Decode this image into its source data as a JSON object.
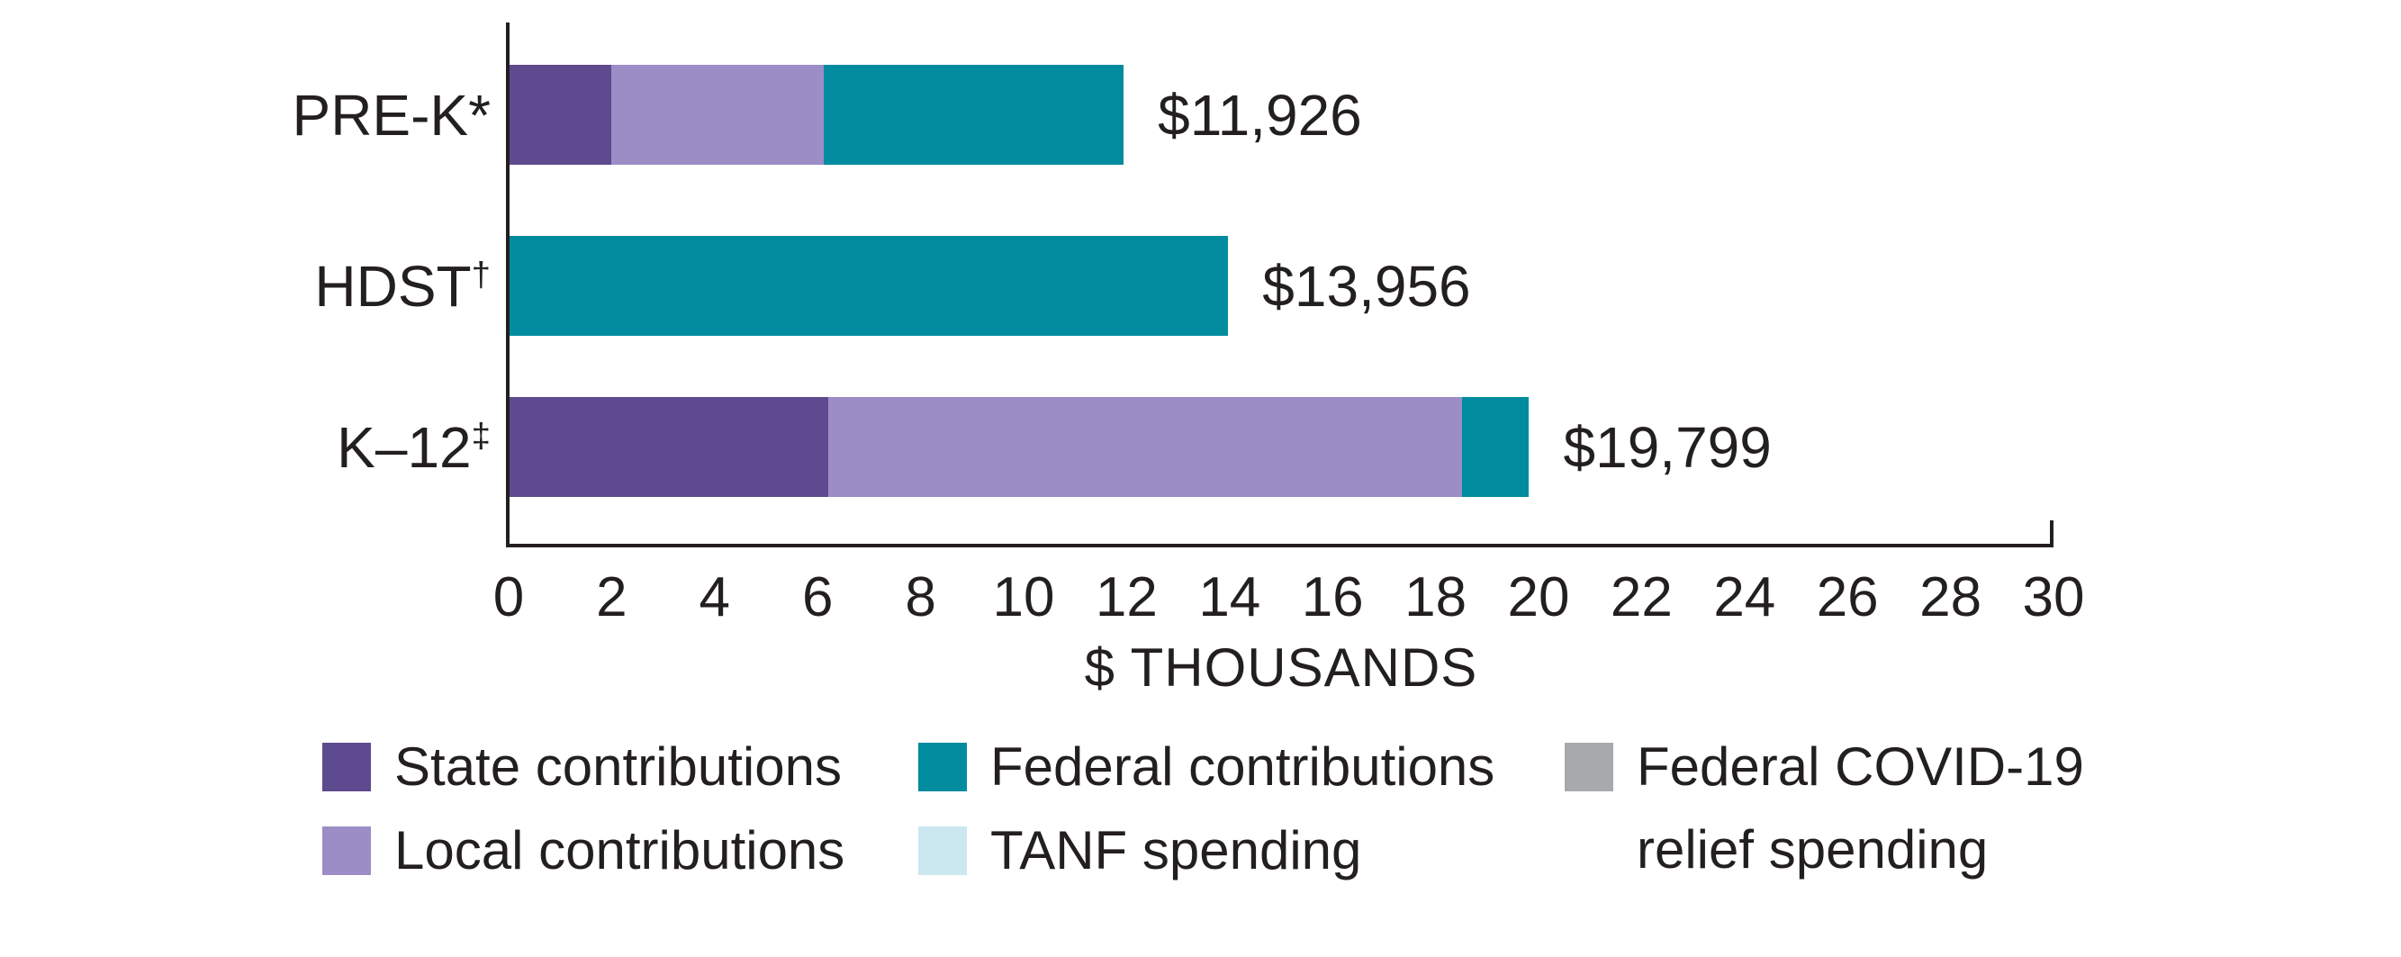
{
  "chart_data": {
    "type": "bar",
    "orientation": "horizontal",
    "xlabel": "$ THOUSANDS",
    "xlim": [
      0,
      30
    ],
    "xtick_step": 2,
    "grid": false,
    "legend_position": "bottom",
    "categories": [
      {
        "label": "PRE-K",
        "marker": "*",
        "marker_superscript": false
      },
      {
        "label": "HDST",
        "marker": "†",
        "marker_superscript": true
      },
      {
        "label": "K–12",
        "marker": "‡",
        "marker_superscript": true
      }
    ],
    "series": [
      {
        "key": "state",
        "name": "State contributions",
        "values": [
          1.97,
          0,
          6.19
        ]
      },
      {
        "key": "local",
        "name": "Local contributions",
        "values": [
          4.13,
          0,
          12.31
        ]
      },
      {
        "key": "federal",
        "name": "Federal contributions",
        "values": [
          5.826,
          13.956,
          1.299
        ]
      },
      {
        "key": "tanf",
        "name": "TANF spending",
        "values": [
          0,
          0,
          0
        ]
      },
      {
        "key": "covid",
        "name": "Federal COVID-19 relief spending",
        "values": [
          0,
          0,
          0
        ]
      }
    ],
    "total_labels": [
      "$11,926",
      "$13,956",
      "$19,799"
    ],
    "units": "dollars per child, thousands"
  },
  "colors": {
    "state": "#5e4a8e",
    "local": "#9c8dc6",
    "federal": "#008b9e",
    "tanf": "#cbe7f0",
    "covid": "#a7a9ac",
    "axis": "#231f20",
    "text": "#231f20"
  },
  "legend": {
    "items": [
      {
        "key": "state",
        "label": "State contributions"
      },
      {
        "key": "local",
        "label": "Local contributions"
      },
      {
        "key": "federal",
        "label": "Federal contributions"
      },
      {
        "key": "tanf",
        "label": "TANF spending"
      },
      {
        "key": "covid",
        "label": "Federal COVID-19",
        "label_line2": "relief spending"
      }
    ]
  }
}
